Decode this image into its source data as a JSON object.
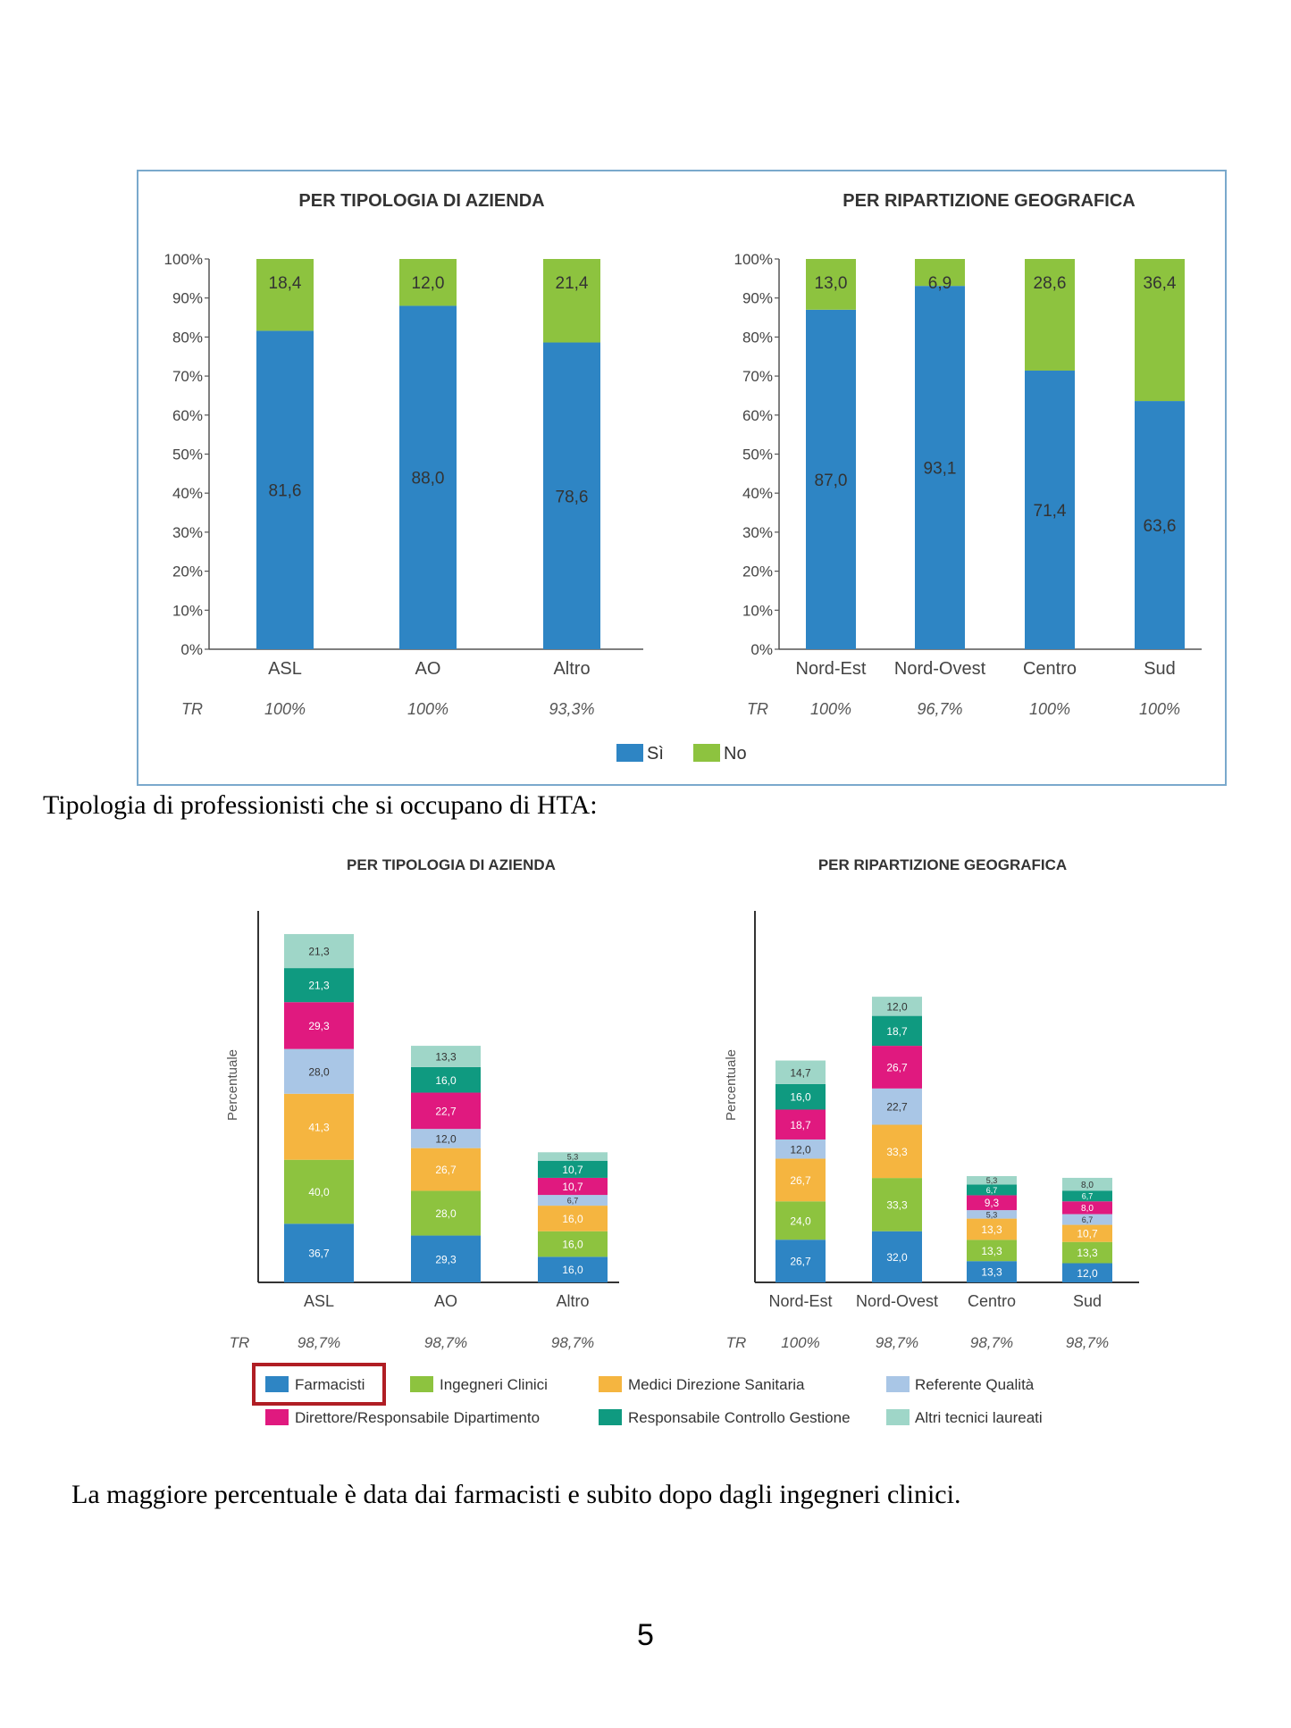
{
  "caption": "Tipologia di professionisti che si occupano di HTA:",
  "conclusion": "La maggiore percentuale è data dai farmacisti e subito dopo dagli ingegneri clinici.",
  "page_number": "5",
  "colors": {
    "si": "#2e85c4",
    "no": "#8dc33f",
    "farmacisti": "#2e85c4",
    "ingegneri": "#8dc33f",
    "medici": "#f5b540",
    "referente": "#a9c6e6",
    "direttore": "#e0197f",
    "controllo": "#0f9a80",
    "altri": "#9fd6c8",
    "highlight": "#b01e24"
  },
  "chart_data": [
    {
      "type": "bar",
      "stacked": true,
      "title": "PER TIPOLOGIA DI AZIENDA",
      "categories": [
        "ASL",
        "AO",
        "Altro"
      ],
      "series": [
        {
          "name": "Sì",
          "values": [
            81.6,
            88.0,
            78.6
          ],
          "labels": [
            "81,6",
            "88,0",
            "78,6"
          ]
        },
        {
          "name": "No",
          "values": [
            18.4,
            12.0,
            21.4
          ],
          "labels": [
            "18,4",
            "12,0",
            "21,4"
          ]
        }
      ],
      "y_ticks": [
        "0%",
        "10%",
        "20%",
        "30%",
        "40%",
        "50%",
        "60%",
        "70%",
        "80%",
        "90%",
        "100%"
      ],
      "ylim": [
        0,
        100
      ],
      "tr_label": "TR",
      "tr_values": [
        "100%",
        "100%",
        "93,3%"
      ]
    },
    {
      "type": "bar",
      "stacked": true,
      "title": "PER RIPARTIZIONE GEOGRAFICA",
      "categories": [
        "Nord-Est",
        "Nord-Ovest",
        "Centro",
        "Sud"
      ],
      "series": [
        {
          "name": "Sì",
          "values": [
            87.0,
            93.1,
            71.4,
            63.6
          ],
          "labels": [
            "87,0",
            "93,1",
            "71,4",
            "63,6"
          ]
        },
        {
          "name": "No",
          "values": [
            13.0,
            6.9,
            28.6,
            36.4
          ],
          "labels": [
            "13,0",
            "6,9",
            "28,6",
            "36,4"
          ]
        }
      ],
      "y_ticks": [
        "0%",
        "10%",
        "20%",
        "30%",
        "40%",
        "50%",
        "60%",
        "70%",
        "80%",
        "90%",
        "100%"
      ],
      "ylim": [
        0,
        100
      ],
      "tr_label": "TR",
      "tr_values": [
        "100%",
        "96,7%",
        "100%",
        "100%"
      ]
    },
    {
      "type": "bar",
      "stacked": true,
      "title": "PER TIPOLOGIA DI AZIENDA",
      "ylabel": "Percentuale",
      "categories": [
        "ASL",
        "AO",
        "Altro"
      ],
      "series": [
        {
          "name": "Farmacisti",
          "values": [
            36.7,
            29.3,
            16.0
          ],
          "labels": [
            "36,7",
            "29,3",
            "16,0"
          ]
        },
        {
          "name": "Ingegneri Clinici",
          "values": [
            40.0,
            28.0,
            16.0
          ],
          "labels": [
            "40,0",
            "28,0",
            "16,0"
          ]
        },
        {
          "name": "Medici Direzione Sanitaria",
          "values": [
            41.3,
            26.7,
            16.0
          ],
          "labels": [
            "41,3",
            "26,7",
            "16,0"
          ]
        },
        {
          "name": "Referente Qualità",
          "values": [
            28.0,
            12.0,
            6.7
          ],
          "labels": [
            "28,0",
            "12,0",
            "6,7"
          ]
        },
        {
          "name": "Direttore/Responsabile Dipartimento",
          "values": [
            29.3,
            22.7,
            10.7
          ],
          "labels": [
            "29,3",
            "22,7",
            "10,7"
          ]
        },
        {
          "name": "Responsabile Controllo Gestione",
          "values": [
            21.3,
            16.0,
            10.7
          ],
          "labels": [
            "21,3",
            "16,0",
            "10,7"
          ]
        },
        {
          "name": "Altri tecnici laureati",
          "values": [
            21.3,
            13.3,
            5.3
          ],
          "labels": [
            "21,3",
            "13,3",
            "5,3"
          ]
        }
      ],
      "tr_label": "TR",
      "tr_values": [
        "98,7%",
        "98,7%",
        "98,7%"
      ]
    },
    {
      "type": "bar",
      "stacked": true,
      "title": "PER RIPARTIZIONE GEOGRAFICA",
      "ylabel": "Percentuale",
      "categories": [
        "Nord-Est",
        "Nord-Ovest",
        "Centro",
        "Sud"
      ],
      "series": [
        {
          "name": "Farmacisti",
          "values": [
            26.7,
            32.0,
            13.3,
            12.0
          ],
          "labels": [
            "26,7",
            "32,0",
            "13,3",
            "12,0"
          ]
        },
        {
          "name": "Ingegneri Clinici",
          "values": [
            24.0,
            33.3,
            13.3,
            13.3
          ],
          "labels": [
            "24,0",
            "33,3",
            "13,3",
            "13,3"
          ]
        },
        {
          "name": "Medici Direzione Sanitaria",
          "values": [
            26.7,
            33.3,
            13.3,
            10.7
          ],
          "labels": [
            "26,7",
            "33,3",
            "13,3",
            "10,7"
          ]
        },
        {
          "name": "Referente Qualità",
          "values": [
            12.0,
            22.7,
            5.3,
            6.7
          ],
          "labels": [
            "12,0",
            "22,7",
            "5,3",
            "6,7"
          ]
        },
        {
          "name": "Direttore/Responsabile Dipartimento",
          "values": [
            18.7,
            26.7,
            9.3,
            8.0
          ],
          "labels": [
            "18,7",
            "26,7",
            "9,3",
            "8,0"
          ]
        },
        {
          "name": "Responsabile Controllo Gestione",
          "values": [
            16.0,
            18.7,
            6.7,
            6.7
          ],
          "labels": [
            "16,0",
            "18,7",
            "6,7",
            "6,7"
          ]
        },
        {
          "name": "Altri tecnici laureati",
          "values": [
            14.7,
            12.0,
            5.3,
            8.0
          ],
          "labels": [
            "14,7",
            "12,0",
            "5,3",
            "8,0"
          ]
        }
      ],
      "tr_label": "TR",
      "tr_values": [
        "100%",
        "98,7%",
        "98,7%",
        "98,7%"
      ]
    }
  ]
}
